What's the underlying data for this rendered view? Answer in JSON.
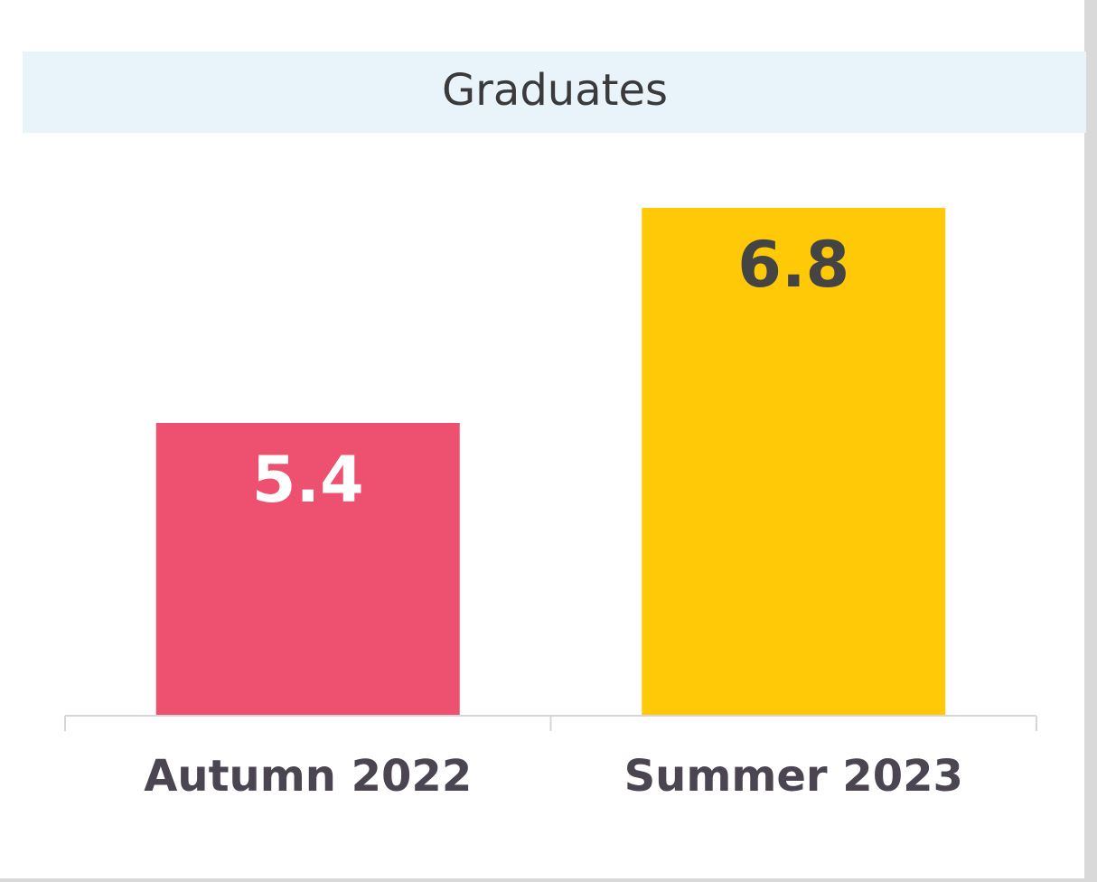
{
  "chart_data": {
    "type": "bar",
    "title": "Graduates",
    "categories": [
      "Autumn 2022",
      "Summer 2023"
    ],
    "values": [
      5.4,
      6.8
    ],
    "colors": [
      "#ee5070",
      "#ffc907"
    ],
    "value_label_colors": [
      "#ffffff",
      "#444444"
    ],
    "ylim": [
      3.5,
      7
    ]
  }
}
